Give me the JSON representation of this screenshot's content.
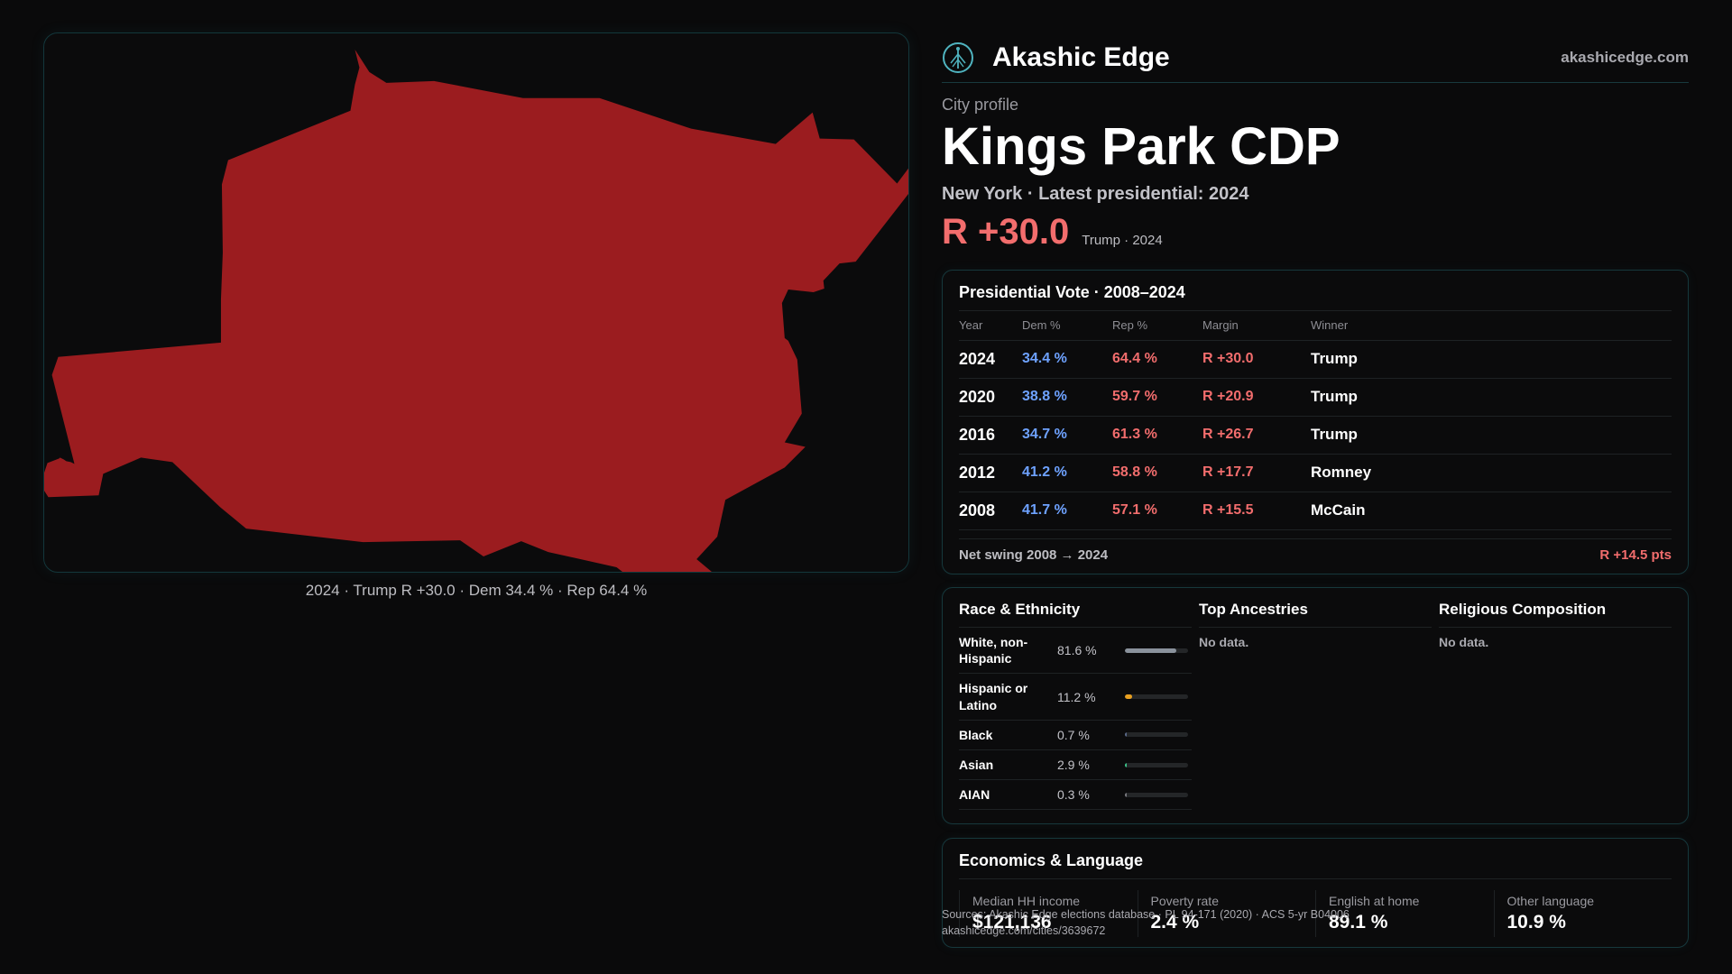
{
  "map": {
    "caption": "2024 · Trump R +30.0 · Dem 34.4 % · Rep 64.4 %",
    "fill_color": "#9b1c1f"
  },
  "header": {
    "brand_name": "Akashic Edge",
    "brand_url": "akashicedge.com",
    "logo_icon": "tree-of-life-icon"
  },
  "profile": {
    "kicker": "City profile",
    "title": "Kings Park CDP",
    "subline": "New York · Latest presidential: 2024",
    "margin": "R +30.0",
    "margin_sub": "Trump · 2024"
  },
  "presidential": {
    "title": "Presidential Vote · 2008–2024",
    "columns": [
      "Year",
      "Dem %",
      "Rep %",
      "Margin",
      "Winner"
    ],
    "rows": [
      {
        "year": "2024",
        "dem": "34.4 %",
        "rep": "64.4 %",
        "margin": "R +30.0",
        "winner": "Trump"
      },
      {
        "year": "2020",
        "dem": "38.8 %",
        "rep": "59.7 %",
        "margin": "R +20.9",
        "winner": "Trump"
      },
      {
        "year": "2016",
        "dem": "34.7 %",
        "rep": "61.3 %",
        "margin": "R +26.7",
        "winner": "Trump"
      },
      {
        "year": "2012",
        "dem": "41.2 %",
        "rep": "58.8 %",
        "margin": "R +17.7",
        "winner": "Romney"
      },
      {
        "year": "2008",
        "dem": "41.7 %",
        "rep": "57.1 %",
        "margin": "R +15.5",
        "winner": "McCain"
      }
    ],
    "swing_label": "Net swing 2008 → 2024",
    "swing_value": "R +14.5 pts"
  },
  "race": {
    "title": "Race & Ethnicity",
    "rows": [
      {
        "label": "White, non-Hispanic",
        "pct": "81.6 %",
        "share": 0.816,
        "color": "#8a929c"
      },
      {
        "label": "Hispanic or Latino",
        "pct": "11.2 %",
        "share": 0.112,
        "color": "#e8a020"
      },
      {
        "label": "Black",
        "pct": "0.7 %",
        "share": 0.007,
        "color": "#5a6a8a"
      },
      {
        "label": "Asian",
        "pct": "2.9 %",
        "share": 0.029,
        "color": "#3cc48a"
      },
      {
        "label": "AIAN",
        "pct": "0.3 %",
        "share": 0.003,
        "color": "#7a7a80"
      }
    ]
  },
  "ancestry": {
    "title": "Top Ancestries",
    "empty": "No data."
  },
  "religion": {
    "title": "Religious Composition",
    "empty": "No data."
  },
  "economics": {
    "title": "Economics & Language",
    "stats": [
      {
        "label": "Median HH income",
        "value": "$121,136"
      },
      {
        "label": "Poverty rate",
        "value": "2.4 %"
      },
      {
        "label": "English at home",
        "value": "89.1 %"
      },
      {
        "label": "Other language",
        "value": "10.9 %"
      }
    ]
  },
  "source": {
    "line1": "Sources: Akashic Edge elections database · PL 94-171 (2020) · ACS 5-yr B04006",
    "line2": "akashicedge.com/cities/3639672"
  }
}
